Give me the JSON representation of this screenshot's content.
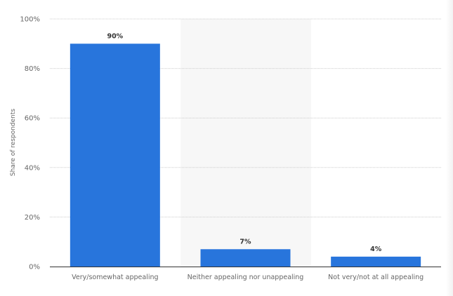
{
  "chart_data": {
    "type": "bar",
    "categories": [
      "Very/somewhat appealing",
      "Neither appealing nor unappealing",
      "Not very/not at all appealing"
    ],
    "values": [
      90,
      7,
      4
    ],
    "data_labels": [
      "90%",
      "7%",
      "4%"
    ],
    "title": "",
    "xlabel": "",
    "ylabel": "Share of respondents",
    "ylim": [
      0,
      100
    ],
    "yticks": [
      "0%",
      "20%",
      "40%",
      "60%",
      "80%",
      "100%"
    ],
    "grid": true,
    "highlighted_category": 1,
    "colors": {
      "bar": "#2875dc",
      "highlight_band": "#f7f7f7",
      "grid": "#cccccc",
      "axis": "#333333",
      "text": "#666666"
    }
  }
}
